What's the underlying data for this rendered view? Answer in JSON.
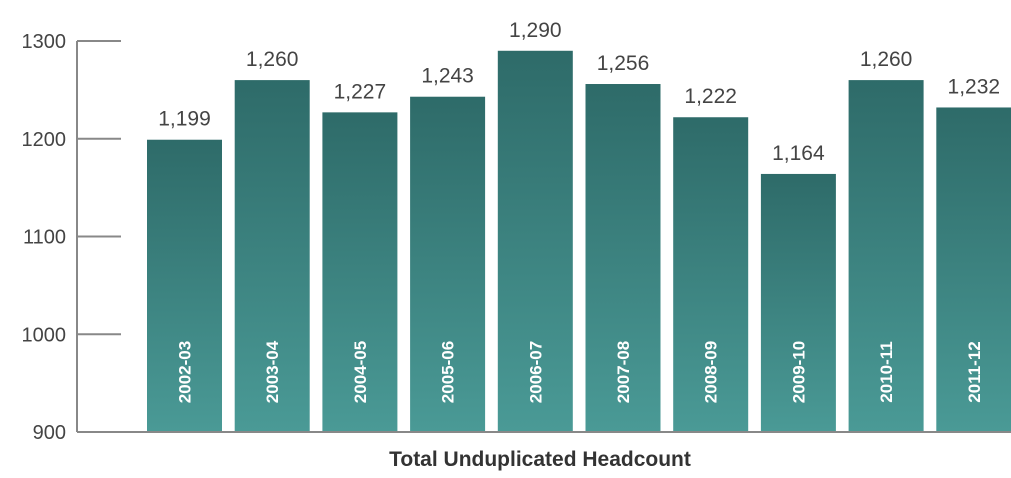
{
  "chart_data": {
    "type": "bar",
    "title": "",
    "xlabel": "Total Unduplicated Headcount",
    "ylabel": "",
    "ylim": [
      900,
      1300
    ],
    "yticks": [
      900,
      1000,
      1100,
      1200,
      1300
    ],
    "categories": [
      "2002-03",
      "2003-04",
      "2004-05",
      "2005-06",
      "2006-07",
      "2007-08",
      "2008-09",
      "2009-10",
      "2010-11",
      "2011-12"
    ],
    "values": [
      1199,
      1260,
      1227,
      1243,
      1290,
      1256,
      1222,
      1164,
      1260,
      1232
    ],
    "data_labels": [
      "1,199",
      "1,260",
      "1,227",
      "1,243",
      "1,290",
      "1,256",
      "1,222",
      "1,164",
      "1,260",
      "1,232"
    ],
    "grid": false,
    "colors": {
      "bar_top": "#2e6b69",
      "bar_bottom": "#4a9a96",
      "axis": "#888888"
    }
  }
}
